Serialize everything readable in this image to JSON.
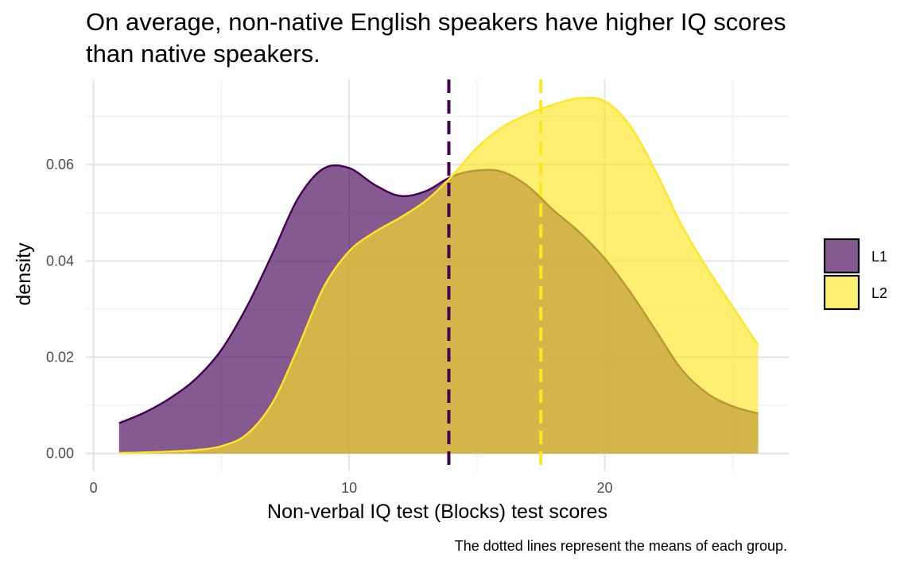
{
  "chart_data": {
    "type": "area",
    "title_lines": [
      "On average, non-native English speakers have higher IQ scores",
      "than native speakers."
    ],
    "xlabel": "Non-verbal IQ test (Blocks) test scores",
    "ylabel": "density",
    "caption": "The dotted lines represent the means of each group.",
    "xlim": [
      -0.3,
      27.2
    ],
    "ylim": [
      -0.0037,
      0.0777
    ],
    "x_ticks": [
      0,
      10,
      20
    ],
    "x_tick_labels": [
      "0",
      "10",
      "20"
    ],
    "y_ticks": [
      0.0,
      0.02,
      0.04,
      0.06
    ],
    "y_tick_labels": [
      "0.00",
      "0.02",
      "0.04",
      "0.06"
    ],
    "x_minor_ticks": [
      5,
      15,
      25
    ],
    "y_minor_ticks": [
      0.01,
      0.03,
      0.05,
      0.07
    ],
    "grid": true,
    "legend_position": "right",
    "series": [
      {
        "name": "L1",
        "fill": "#440154",
        "line": "#440154",
        "fill_opacity": 0.65,
        "mean": 13.9,
        "x": [
          1,
          2,
          3,
          4,
          5,
          6,
          7,
          8,
          9,
          10,
          11,
          12,
          13,
          14,
          15,
          16,
          17,
          18,
          19,
          20,
          21,
          22,
          23,
          24,
          25,
          26
        ],
        "y": [
          0.0063,
          0.0085,
          0.0115,
          0.0155,
          0.0215,
          0.0305,
          0.0415,
          0.053,
          0.0592,
          0.0593,
          0.0558,
          0.0535,
          0.0545,
          0.0575,
          0.0588,
          0.0585,
          0.0555,
          0.0505,
          0.046,
          0.0405,
          0.0335,
          0.0255,
          0.0175,
          0.0125,
          0.0098,
          0.0083
        ]
      },
      {
        "name": "L2",
        "fill": "#FDE725",
        "line": "#FDE725",
        "fill_opacity": 0.65,
        "mean": 17.5,
        "x": [
          1,
          2,
          3,
          4,
          5,
          6,
          7,
          8,
          9,
          10,
          11,
          12,
          13,
          14,
          15,
          16,
          17,
          18,
          19,
          20,
          21,
          22,
          23,
          24,
          25,
          26
        ],
        "y": [
          0.0001,
          0.0002,
          0.0004,
          0.0007,
          0.0015,
          0.004,
          0.0105,
          0.022,
          0.0345,
          0.042,
          0.046,
          0.049,
          0.0525,
          0.0575,
          0.0635,
          0.0678,
          0.0705,
          0.0725,
          0.0738,
          0.0732,
          0.068,
          0.0585,
          0.0475,
          0.0385,
          0.0305,
          0.0225
        ]
      }
    ]
  }
}
